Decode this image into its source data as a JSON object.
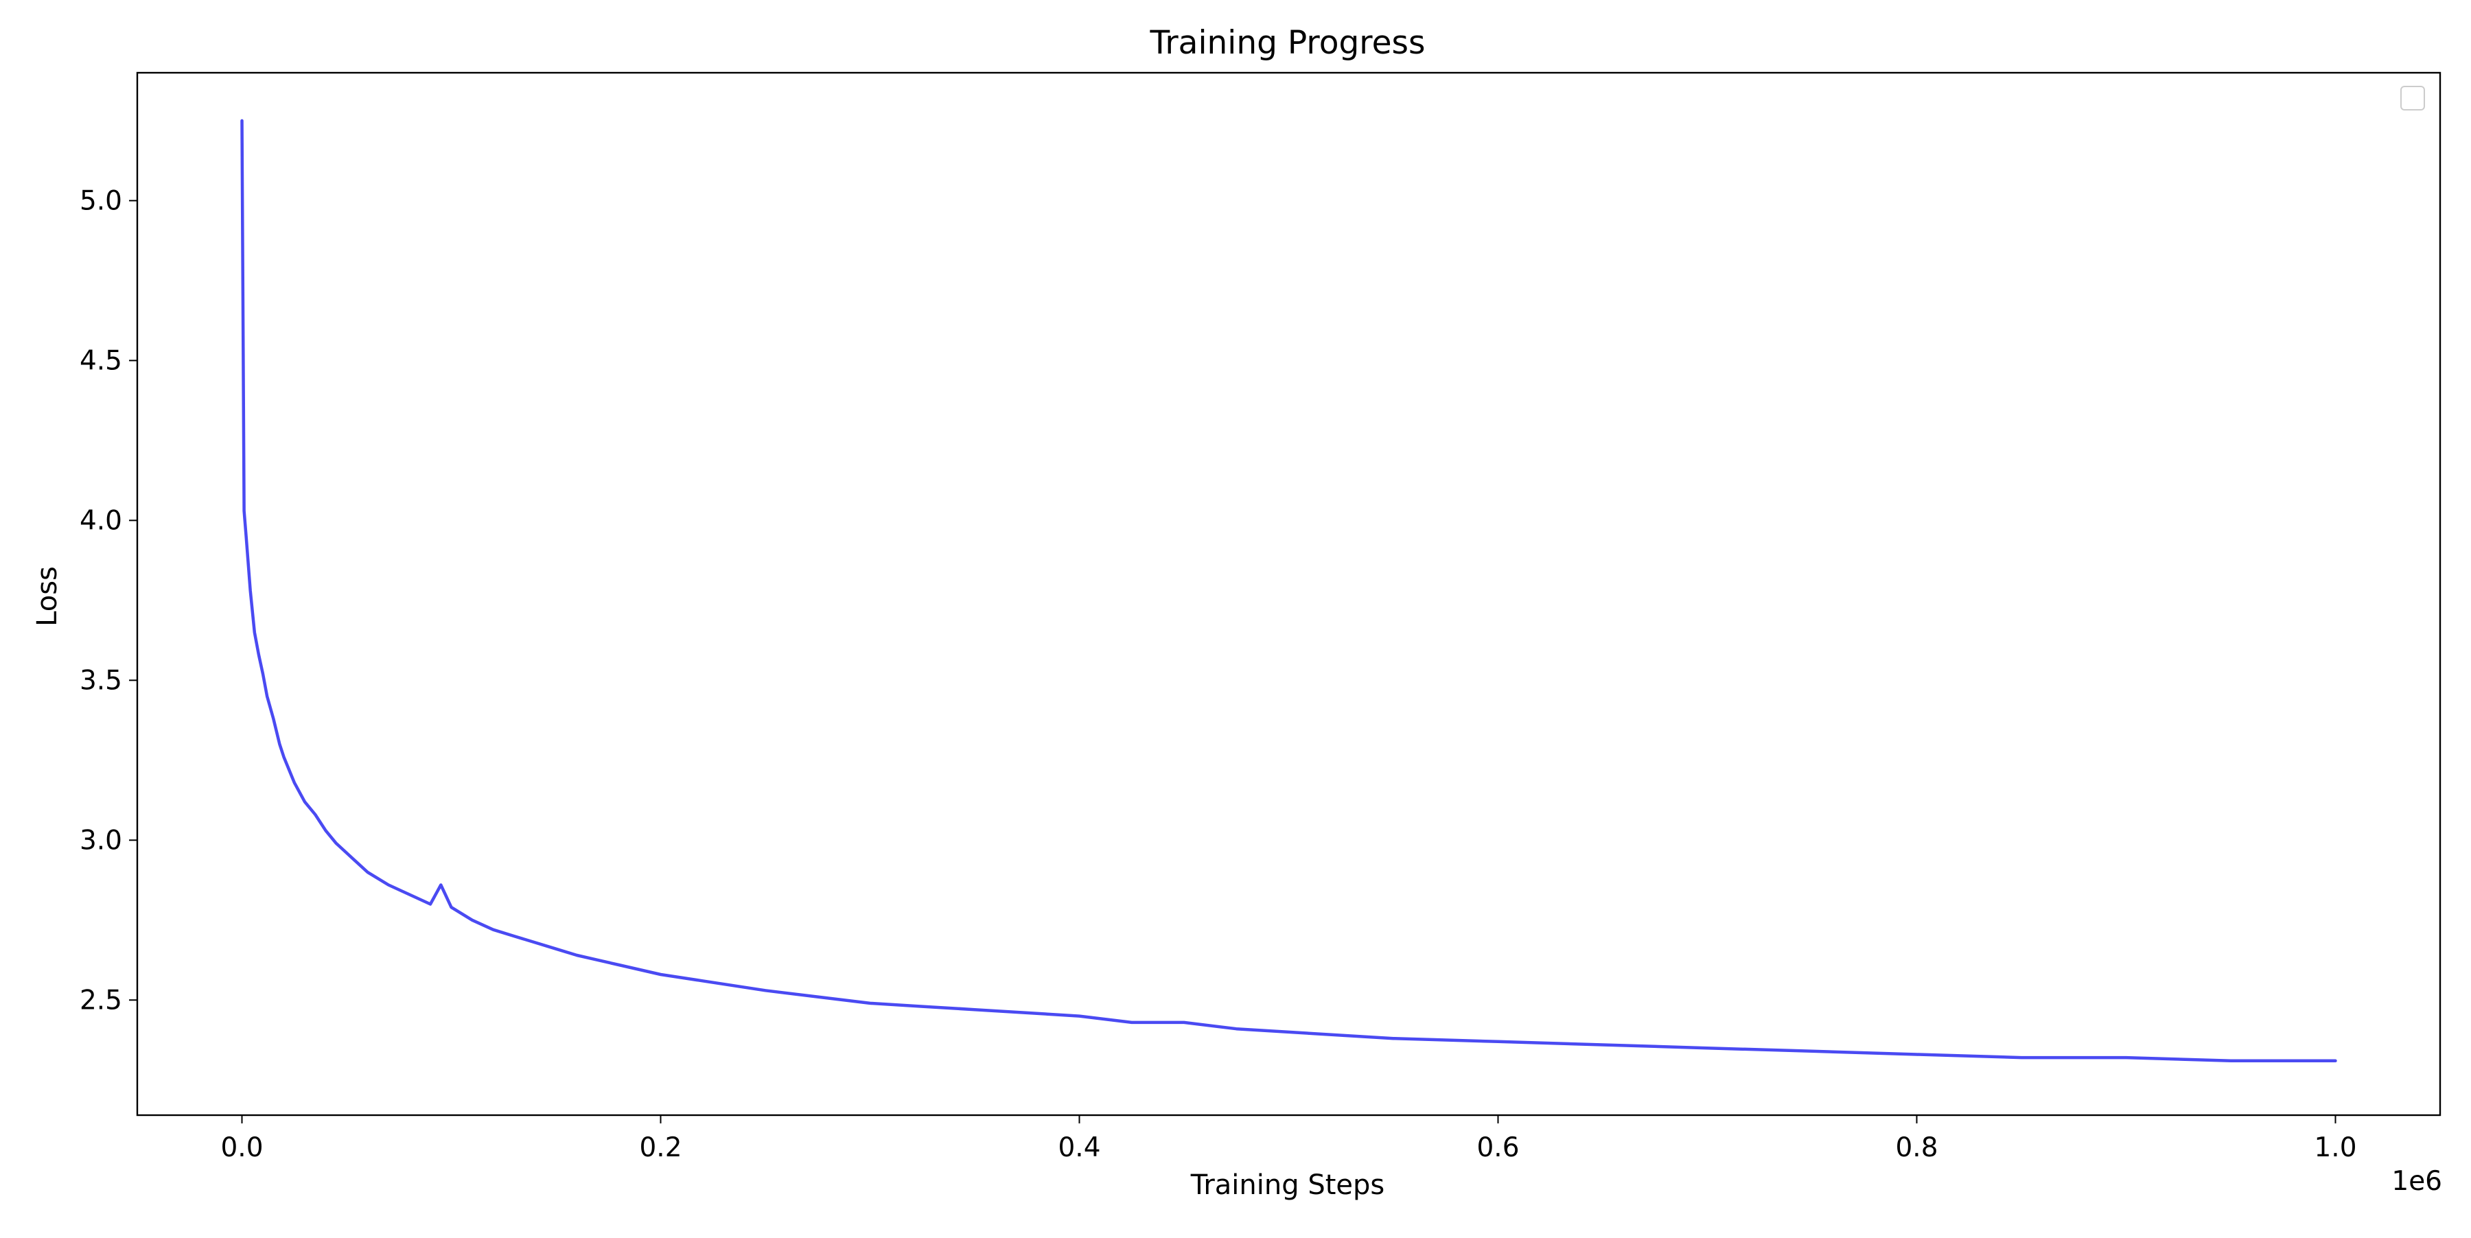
{
  "chart_data": {
    "type": "line",
    "title": "Training Progress",
    "xlabel": "Training Steps",
    "ylabel": "Loss",
    "x_offset_label": "1e6",
    "xlim": [
      -50000,
      1050000
    ],
    "ylim": [
      2.14,
      5.4
    ],
    "xticks": [
      0,
      200000,
      400000,
      600000,
      800000,
      1000000
    ],
    "xtick_labels": [
      "0.0",
      "0.2",
      "0.4",
      "0.6",
      "0.8",
      "1.0"
    ],
    "yticks": [
      2.5,
      3.0,
      3.5,
      4.0,
      4.5,
      5.0
    ],
    "ytick_labels": [
      "2.5",
      "3.0",
      "3.5",
      "4.0",
      "4.5",
      "5.0"
    ],
    "grid": false,
    "legend": {
      "placement": "upper right",
      "entries": []
    },
    "line_color": "#4a4af2",
    "series": [
      {
        "x": [
          0,
          1000,
          2000,
          4000,
          6000,
          8000,
          10000,
          12000,
          15000,
          18000,
          20000,
          25000,
          30000,
          35000,
          40000,
          45000,
          50000,
          60000,
          70000,
          80000,
          90000,
          95000,
          100000,
          110000,
          120000,
          130000,
          140000,
          150000,
          160000,
          180000,
          200000,
          220000,
          250000,
          275000,
          300000,
          325000,
          350000,
          375000,
          400000,
          425000,
          450000,
          475000,
          500000,
          550000,
          600000,
          650000,
          700000,
          750000,
          800000,
          850000,
          900000,
          950000,
          1000000
        ],
        "y": [
          5.25,
          4.03,
          3.95,
          3.78,
          3.65,
          3.58,
          3.52,
          3.45,
          3.38,
          3.3,
          3.26,
          3.18,
          3.12,
          3.08,
          3.03,
          2.99,
          2.96,
          2.9,
          2.86,
          2.83,
          2.8,
          2.86,
          2.79,
          2.75,
          2.72,
          2.7,
          2.68,
          2.66,
          2.64,
          2.61,
          2.58,
          2.56,
          2.53,
          2.51,
          2.49,
          2.48,
          2.47,
          2.46,
          2.45,
          2.43,
          2.43,
          2.41,
          2.4,
          2.38,
          2.37,
          2.36,
          2.35,
          2.34,
          2.33,
          2.32,
          2.32,
          2.31,
          2.31
        ]
      }
    ]
  }
}
